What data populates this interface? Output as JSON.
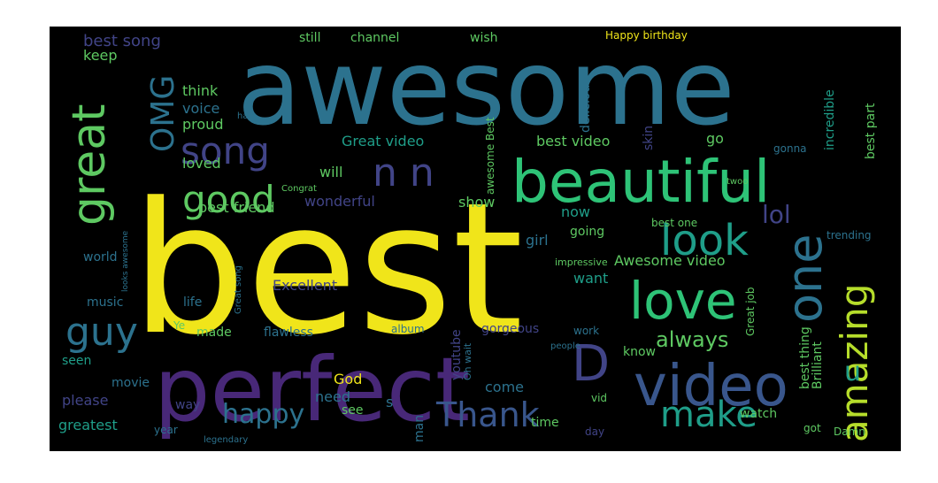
{
  "palette": {
    "background": "#000000",
    "page": "#ffffff",
    "yellow": "#f0e51a",
    "lime": "#b6dd2b",
    "green": "#5ec962",
    "mint": "#2ec377",
    "teal": "#21a585",
    "cyan": "#1f9e89",
    "steel": "#2c728e",
    "blue": "#39568c",
    "indigo": "#414487",
    "purple": "#482878",
    "violet": "#443983",
    "dark": "#3b1f6b"
  },
  "words": [
    {
      "text": "awesome",
      "color": "steel"
    },
    {
      "text": "best",
      "color": "yellow"
    },
    {
      "text": "perfect",
      "color": "purple"
    },
    {
      "text": "beautiful",
      "color": "mint"
    },
    {
      "text": "video",
      "color": "blue"
    },
    {
      "text": "love",
      "color": "mint"
    },
    {
      "text": "look",
      "color": "cyan"
    },
    {
      "text": "great",
      "color": "green"
    },
    {
      "text": "song",
      "color": "indigo"
    },
    {
      "text": "good",
      "color": "green"
    },
    {
      "text": "one",
      "color": "steel"
    },
    {
      "text": "amazing",
      "color": "lime"
    },
    {
      "text": "guy",
      "color": "steel"
    },
    {
      "text": "OMG",
      "color": "steel"
    },
    {
      "text": "n n",
      "color": "indigo"
    },
    {
      "text": "D",
      "color": "indigo"
    },
    {
      "text": "make",
      "color": "cyan"
    },
    {
      "text": "happy",
      "color": "steel"
    },
    {
      "text": "Thank",
      "color": "blue"
    },
    {
      "text": "lol",
      "color": "indigo"
    },
    {
      "text": "u",
      "color": "cyan"
    },
    {
      "text": "always",
      "color": "green"
    },
    {
      "text": "best song",
      "color": "indigo"
    },
    {
      "text": "keep",
      "color": "green"
    },
    {
      "text": "think",
      "color": "green"
    },
    {
      "text": "voice",
      "color": "steel"
    },
    {
      "text": "proud",
      "color": "green"
    },
    {
      "text": "still",
      "color": "green"
    },
    {
      "text": "channel",
      "color": "green"
    },
    {
      "text": "wish",
      "color": "green"
    },
    {
      "text": "Happy birthday",
      "color": "yellow"
    },
    {
      "text": "Great video",
      "color": "cyan"
    },
    {
      "text": "best video",
      "color": "green"
    },
    {
      "text": "go",
      "color": "green"
    },
    {
      "text": "loved",
      "color": "green"
    },
    {
      "text": "will",
      "color": "green"
    },
    {
      "text": "show",
      "color": "green"
    },
    {
      "text": "wonderful",
      "color": "indigo"
    },
    {
      "text": "best friend",
      "color": "green"
    },
    {
      "text": "now",
      "color": "cyan"
    },
    {
      "text": "going",
      "color": "green"
    },
    {
      "text": "girl",
      "color": "steel"
    },
    {
      "text": "want",
      "color": "cyan"
    },
    {
      "text": "Awesome video",
      "color": "green"
    },
    {
      "text": "Excellent",
      "color": "indigo"
    },
    {
      "text": "world",
      "color": "steel"
    },
    {
      "text": "music",
      "color": "steel"
    },
    {
      "text": "life",
      "color": "steel"
    },
    {
      "text": "made",
      "color": "green"
    },
    {
      "text": "flawless",
      "color": "steel"
    },
    {
      "text": "album",
      "color": "steel"
    },
    {
      "text": "gorgeous",
      "color": "indigo"
    },
    {
      "text": "seen",
      "color": "cyan"
    },
    {
      "text": "movie",
      "color": "steel"
    },
    {
      "text": "please",
      "color": "indigo"
    },
    {
      "text": "God",
      "color": "yellow"
    },
    {
      "text": "need",
      "color": "steel"
    },
    {
      "text": "come",
      "color": "steel"
    },
    {
      "text": "see",
      "color": "green"
    },
    {
      "text": "greatest",
      "color": "cyan"
    },
    {
      "text": "year",
      "color": "steel"
    },
    {
      "text": "way",
      "color": "indigo"
    },
    {
      "text": "man",
      "color": "steel"
    },
    {
      "text": "time",
      "color": "green"
    },
    {
      "text": "know",
      "color": "green"
    },
    {
      "text": "watch",
      "color": "green"
    },
    {
      "text": "got",
      "color": "green"
    },
    {
      "text": "day",
      "color": "indigo"
    },
    {
      "text": "legendary",
      "color": "steel"
    },
    {
      "text": "best one",
      "color": "green"
    },
    {
      "text": "trending",
      "color": "steel"
    },
    {
      "text": "gonna",
      "color": "steel"
    },
    {
      "text": "work",
      "color": "steel"
    },
    {
      "text": "people",
      "color": "steel"
    },
    {
      "text": "Damn",
      "color": "green"
    },
    {
      "text": "Brilliant",
      "color": "green"
    },
    {
      "text": "best thing",
      "color": "green"
    },
    {
      "text": "best part",
      "color": "green"
    },
    {
      "text": "incredible",
      "color": "cyan"
    },
    {
      "text": "skin",
      "color": "indigo"
    },
    {
      "text": "delicious",
      "color": "steel"
    },
    {
      "text": "awesome Best",
      "color": "green"
    },
    {
      "text": "youtube",
      "color": "indigo"
    },
    {
      "text": "Great job",
      "color": "green"
    },
    {
      "text": "Great song",
      "color": "steel"
    },
    {
      "text": "looks awesome",
      "color": "steel"
    },
    {
      "text": "Ye",
      "color": "green"
    },
    {
      "text": "Congrat",
      "color": "green"
    },
    {
      "text": "impressive",
      "color": "green"
    },
    {
      "text": "Oh wait",
      "color": "steel"
    },
    {
      "text": "s",
      "color": "steel"
    },
    {
      "text": "vid",
      "color": "green"
    },
    {
      "text": "twoo",
      "color": "green"
    },
    {
      "text": "hair",
      "color": "steel"
    }
  ]
}
